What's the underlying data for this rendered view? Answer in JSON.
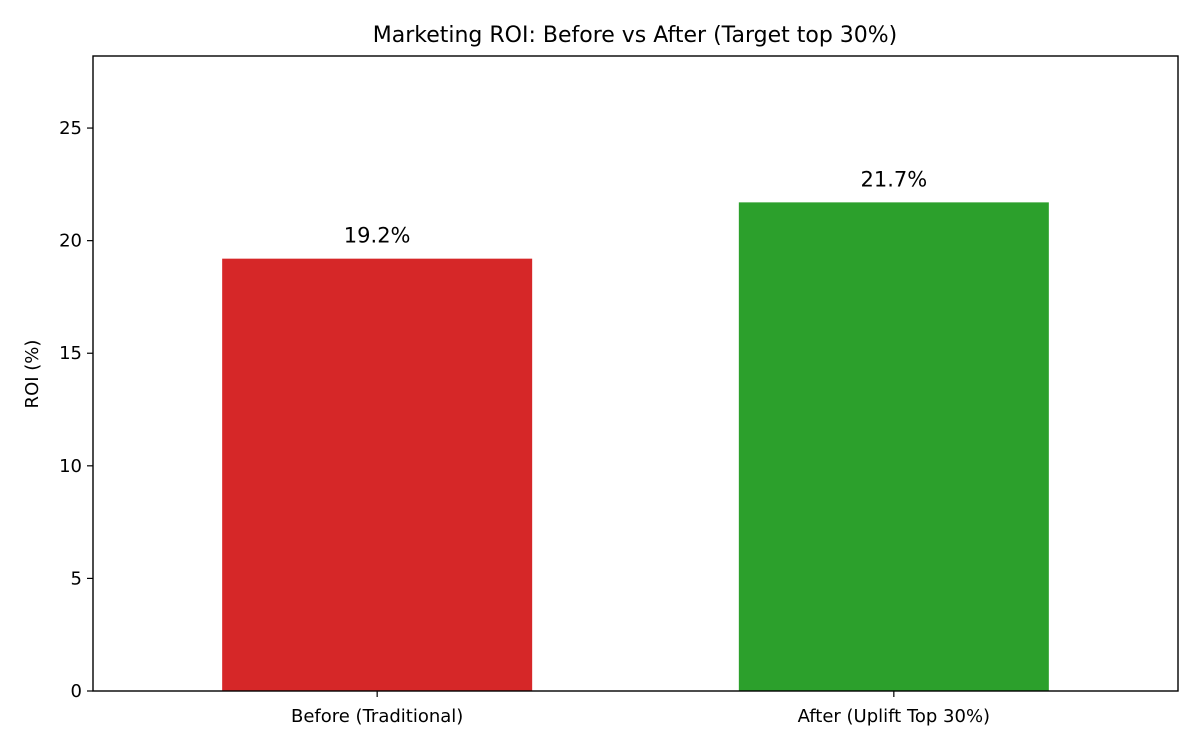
{
  "chart_data": {
    "type": "bar",
    "title": "Marketing ROI: Before vs After (Target top 30%)",
    "xlabel": "",
    "ylabel": "ROI (%)",
    "categories": [
      "Before (Traditional)",
      "After (Uplift Top 30%)"
    ],
    "values": [
      19.2,
      21.7
    ],
    "data_labels": [
      "19.2%",
      "21.7%"
    ],
    "colors": [
      "#d62728",
      "#2ca02c"
    ],
    "ylim": [
      0,
      28.2
    ],
    "yticks": [
      0,
      5,
      10,
      15,
      20,
      25
    ],
    "ytick_labels": [
      "0",
      "5",
      "10",
      "15",
      "20",
      "25"
    ],
    "grid": false,
    "legend": "none"
  }
}
